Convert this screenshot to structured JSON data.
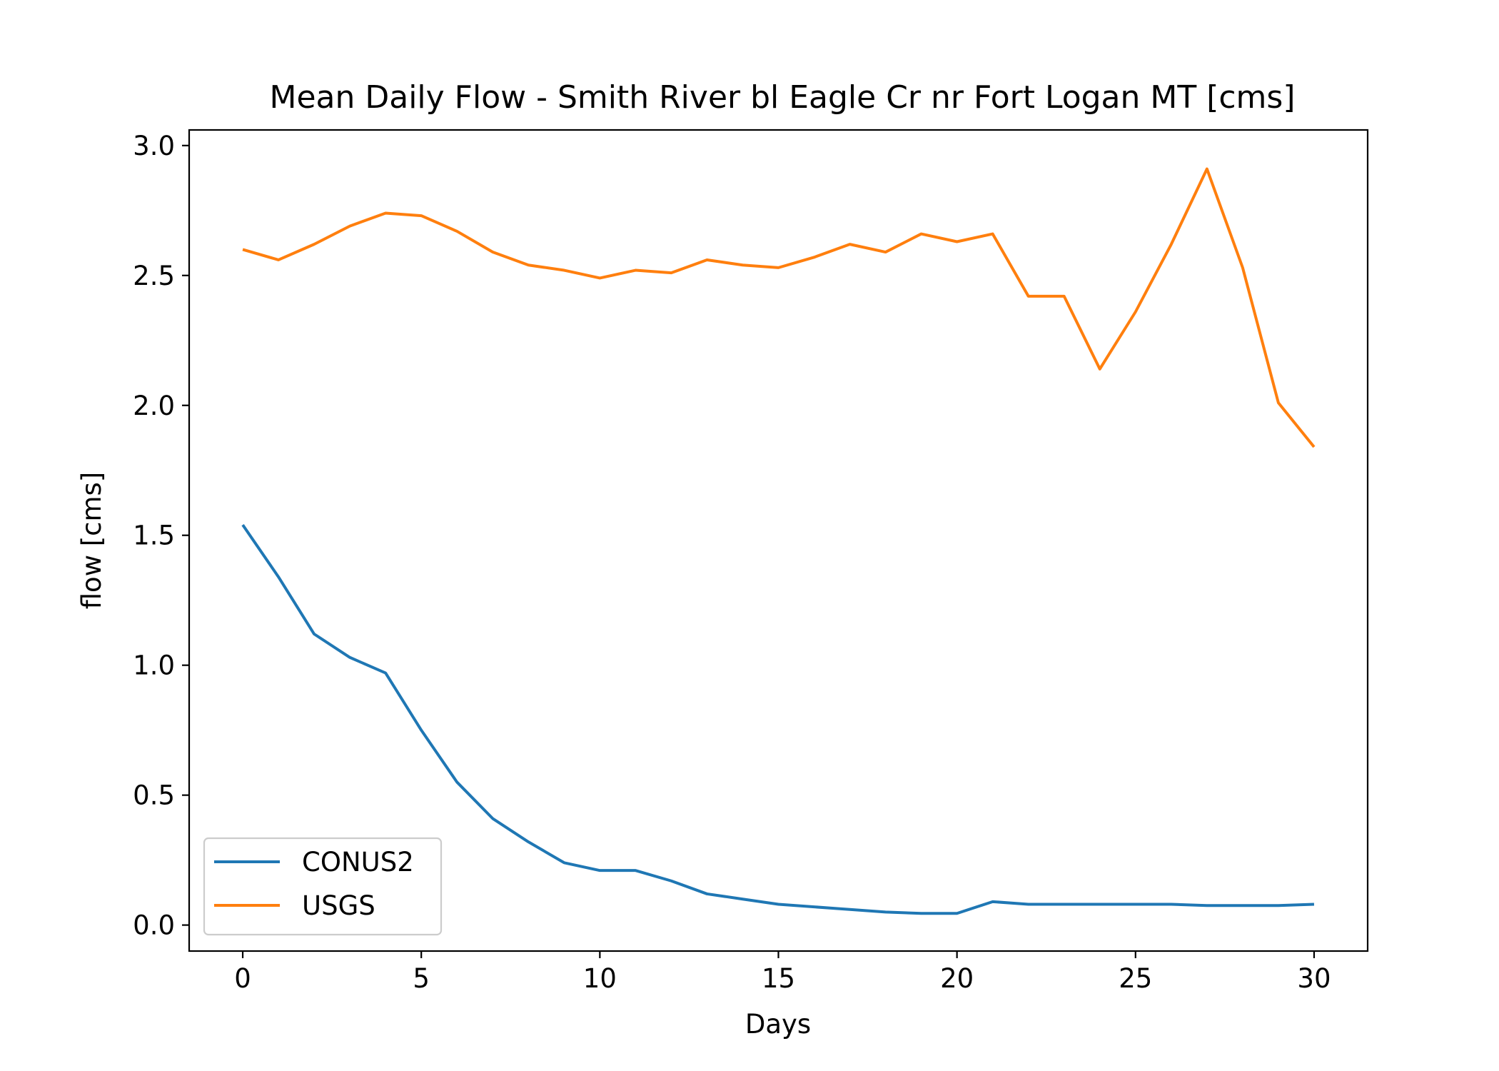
{
  "chart_data": {
    "type": "line",
    "title": "Mean Daily Flow - Smith River bl Eagle Cr nr Fort Logan MT [cms]",
    "xlabel": "Days",
    "ylabel": "flow [cms]",
    "xlim": [
      -1.5,
      31.5
    ],
    "ylim": [
      -0.1,
      3.06
    ],
    "xticks": [
      0,
      5,
      10,
      15,
      20,
      25,
      30
    ],
    "xtick_labels": [
      "0",
      "5",
      "10",
      "15",
      "20",
      "25",
      "30"
    ],
    "yticks": [
      0.0,
      0.5,
      1.0,
      1.5,
      2.0,
      2.5,
      3.0
    ],
    "ytick_labels": [
      "0.0",
      "0.5",
      "1.0",
      "1.5",
      "2.0",
      "2.5",
      "3.0"
    ],
    "grid": false,
    "legend_position": "lower-left",
    "x": [
      0,
      1,
      2,
      3,
      4,
      5,
      6,
      7,
      8,
      9,
      10,
      11,
      12,
      13,
      14,
      15,
      16,
      17,
      18,
      19,
      20,
      21,
      22,
      23,
      24,
      25,
      26,
      27,
      28,
      29,
      30
    ],
    "series": [
      {
        "name": "CONUS2",
        "color": "#1f77b4",
        "values": [
          1.54,
          1.34,
          1.12,
          1.03,
          0.97,
          0.75,
          0.55,
          0.41,
          0.32,
          0.24,
          0.21,
          0.21,
          0.17,
          0.12,
          0.1,
          0.08,
          0.07,
          0.06,
          0.05,
          0.045,
          0.045,
          0.09,
          0.08,
          0.08,
          0.08,
          0.08,
          0.08,
          0.075,
          0.075,
          0.075,
          0.08
        ]
      },
      {
        "name": "USGS",
        "color": "#ff7f0e",
        "values": [
          2.6,
          2.56,
          2.62,
          2.69,
          2.74,
          2.73,
          2.67,
          2.59,
          2.54,
          2.52,
          2.49,
          2.52,
          2.51,
          2.56,
          2.54,
          2.53,
          2.57,
          2.62,
          2.59,
          2.66,
          2.63,
          2.66,
          2.42,
          2.42,
          2.14,
          2.36,
          2.62,
          2.91,
          2.53,
          2.01,
          1.84
        ]
      }
    ]
  }
}
